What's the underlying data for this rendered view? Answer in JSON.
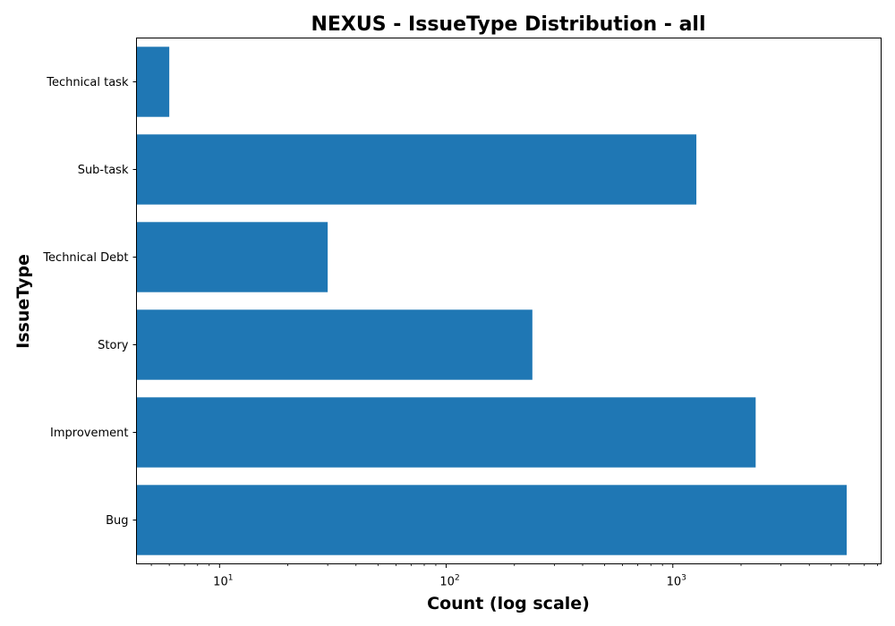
{
  "chart_data": {
    "type": "bar",
    "orientation": "horizontal",
    "title": "NEXUS - IssueType Distribution - all",
    "xlabel": "Count (log scale)",
    "ylabel": "IssueType",
    "xscale": "log",
    "xlim": [
      4.3,
      8300
    ],
    "categories": [
      "Technical task",
      "Sub-task",
      "Technical Debt",
      "Story",
      "Improvement",
      "Bug"
    ],
    "values": [
      6,
      1270,
      30,
      240,
      2320,
      5850
    ],
    "xticks": [
      {
        "base": "10",
        "exp": "1",
        "value": 10
      },
      {
        "base": "10",
        "exp": "2",
        "value": 100
      },
      {
        "base": "10",
        "exp": "3",
        "value": 1000
      }
    ],
    "bar_color": "#1f77b4",
    "grid": false,
    "legend": "none"
  }
}
